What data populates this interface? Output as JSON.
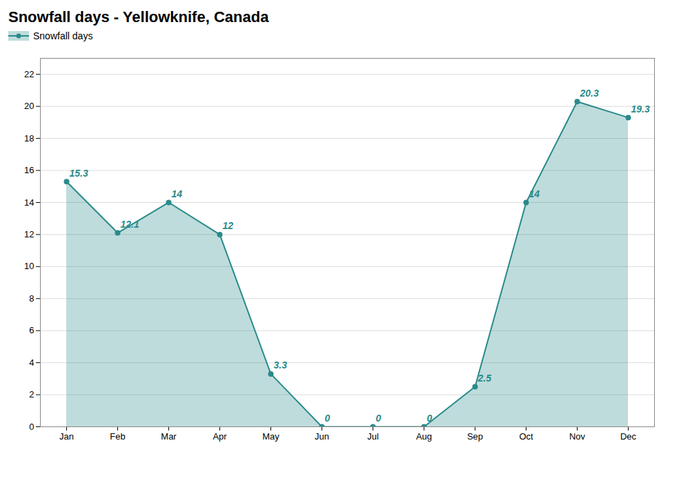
{
  "chart_data": {
    "type": "area",
    "title": "Snowfall days - Yellowknife, Canada",
    "categories": [
      "Jan",
      "Feb",
      "Mar",
      "Apr",
      "May",
      "Jun",
      "Jul",
      "Aug",
      "Sep",
      "Oct",
      "Nov",
      "Dec"
    ],
    "series": [
      {
        "name": "Snowfall days",
        "color": "#2a8a8a",
        "values": [
          15.3,
          12.1,
          14.0,
          12.0,
          3.3,
          0,
          0,
          0,
          2.5,
          14.0,
          20.3,
          19.3
        ]
      }
    ],
    "ylim": [
      0,
      23
    ],
    "yticks": [
      0,
      2,
      4,
      6,
      8,
      10,
      12,
      14,
      16,
      18,
      20,
      22
    ],
    "grid": true,
    "legend": "upper left",
    "data_labels": true,
    "marker": "circle"
  }
}
